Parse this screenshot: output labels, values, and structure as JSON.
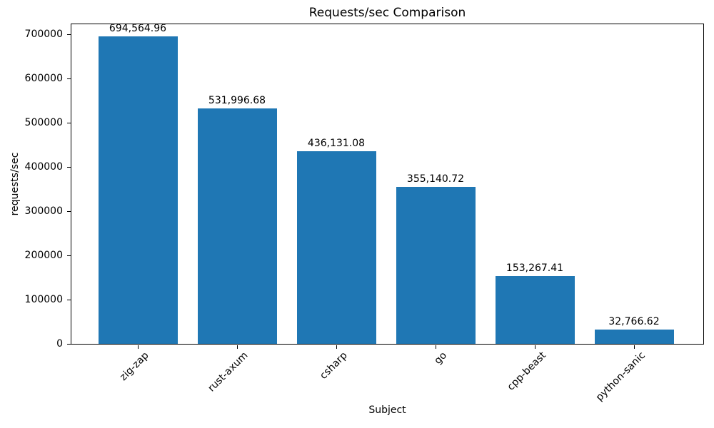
{
  "chart_data": {
    "type": "bar",
    "title": "Requests/sec Comparison",
    "xlabel": "Subject",
    "ylabel": "requests/sec",
    "categories": [
      "zig-zap",
      "rust-axum",
      "csharp",
      "go",
      "cpp-beast",
      "python-sanic"
    ],
    "values": [
      694564.96,
      531996.68,
      436131.08,
      355140.72,
      153267.41,
      32766.62
    ],
    "value_labels": [
      "694,564.96",
      "531,996.68",
      "436,131.08",
      "355,140.72",
      "153,267.41",
      "32,766.62"
    ],
    "yticks": [
      0,
      100000,
      200000,
      300000,
      400000,
      500000,
      600000,
      700000
    ],
    "ytick_labels": [
      "0",
      "100000",
      "200000",
      "300000",
      "400000",
      "500000",
      "600000",
      "700000"
    ],
    "ylim": [
      0,
      725806
    ],
    "bar_color": "#1f77b4",
    "axis_color": "#000000",
    "grid": false,
    "legend_position": "none"
  }
}
